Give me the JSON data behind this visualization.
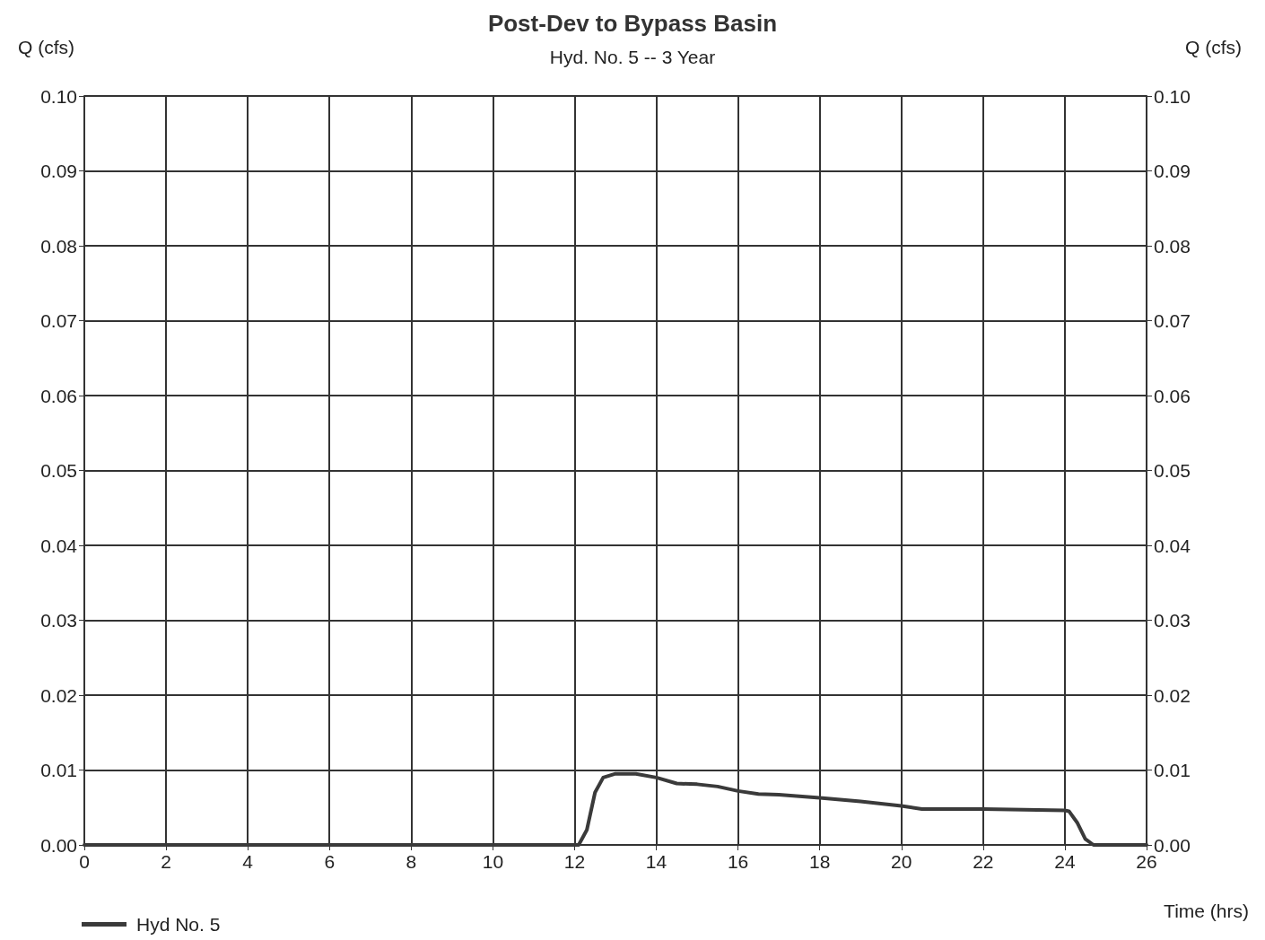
{
  "chart_data": {
    "type": "line",
    "title": "Post-Dev to Bypass Basin",
    "subtitle": "Hyd. No. 5 -- 3 Year",
    "xlabel": "Time (hrs)",
    "ylabel": "Q (cfs)",
    "y2label": "Q (cfs)",
    "series": [
      {
        "name": "Hyd No. 5",
        "color": "#3a3a3a",
        "x": [
          0,
          4,
          8,
          12,
          12.1,
          12.3,
          12.5,
          12.7,
          13,
          13.5,
          14,
          14.5,
          15,
          15.5,
          16,
          16.5,
          17,
          18,
          19,
          20,
          20.5,
          21,
          22,
          23,
          24,
          24.1,
          24.3,
          24.5,
          24.7,
          26
        ],
        "values": [
          0,
          0,
          0,
          0,
          0,
          0.002,
          0.007,
          0.009,
          0.0095,
          0.0095,
          0.009,
          0.0082,
          0.0081,
          0.0078,
          0.0072,
          0.0068,
          0.0067,
          0.0063,
          0.0058,
          0.0052,
          0.0048,
          0.0048,
          0.0048,
          0.0047,
          0.0046,
          0.0045,
          0.003,
          0.0008,
          0,
          0
        ]
      }
    ],
    "xlim": [
      0,
      26
    ],
    "xticks": [
      0,
      2,
      4,
      6,
      8,
      10,
      12,
      14,
      16,
      18,
      20,
      22,
      24,
      26
    ],
    "ylim": [
      0,
      0.1
    ],
    "yticks": [
      {
        "value": 0,
        "label": "0.00"
      },
      0.01,
      0.02,
      0.03,
      0.04,
      0.05,
      0.06,
      0.07,
      0.08,
      0.09,
      {
        "value": 0.1,
        "label": "0.10"
      }
    ],
    "y2lim": [
      0,
      0.1
    ],
    "y2ticks": [
      {
        "value": 0,
        "label": "0.00"
      },
      0.01,
      0.02,
      0.03,
      0.04,
      0.05,
      0.06,
      0.07,
      0.08,
      0.09,
      {
        "value": 0.1,
        "label": "0.10"
      }
    ],
    "grid": true,
    "legend": "bottom left",
    "marker": "none",
    "line_style": "solid"
  }
}
